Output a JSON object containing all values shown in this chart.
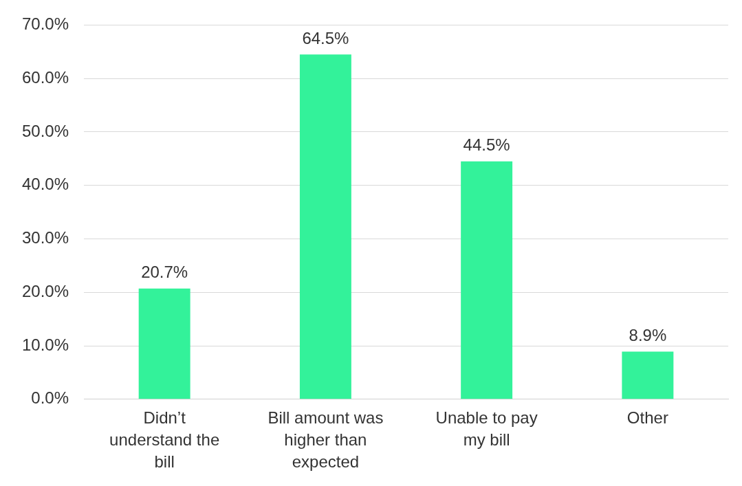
{
  "chart_data": {
    "type": "bar",
    "categories": [
      "Didn’t understand the bill",
      "Bill amount was higher than expected",
      "Unable to pay my bill",
      "Other"
    ],
    "values": [
      20.7,
      64.5,
      44.5,
      8.9
    ],
    "value_labels": [
      "20.7%",
      "64.5%",
      "44.5%",
      "8.9%"
    ],
    "color": "#33f29a",
    "ylim": [
      0,
      70
    ],
    "yticks": [
      {
        "value": 0,
        "label": "0.0%"
      },
      {
        "value": 10,
        "label": "10.0%"
      },
      {
        "value": 20,
        "label": "20.0%"
      },
      {
        "value": 30,
        "label": "30.0%"
      },
      {
        "value": 40,
        "label": "40.0%"
      },
      {
        "value": 50,
        "label": "50.0%"
      },
      {
        "value": 60,
        "label": "60.0%"
      },
      {
        "value": 70,
        "label": "70.0%"
      }
    ],
    "grid": "y"
  }
}
